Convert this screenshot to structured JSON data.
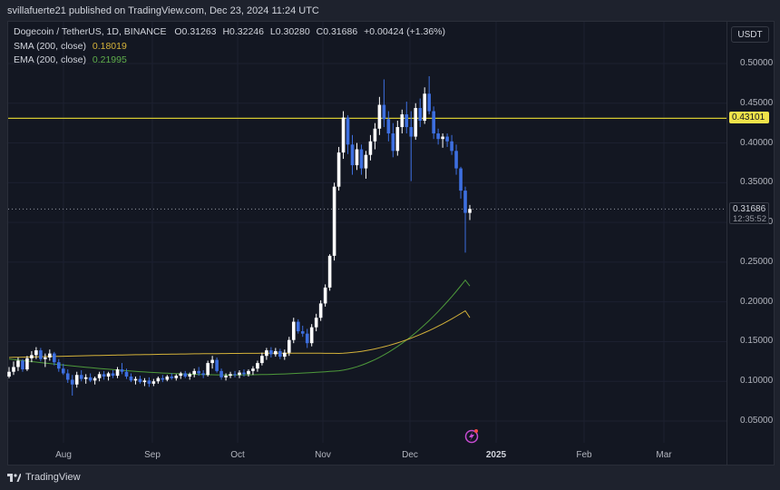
{
  "header": {
    "publisher": "svillafuerte21 published on TradingView.com, Dec 23, 2024 11:24 UTC"
  },
  "legend": {
    "symbol": "Dogecoin / TetherUS, 1D, BINANCE",
    "open": "O0.31263",
    "high": "H0.32246",
    "low": "L0.30280",
    "close": "C0.31686",
    "change": "+0.00424 (+1.36%)",
    "sma_label": "SMA (200, close)",
    "sma_value": "0.18019",
    "ema_label": "EMA (200, close)",
    "ema_value": "0.21995"
  },
  "toolbar": {
    "currency": "USDT"
  },
  "price_scale": [
    "0.50000",
    "0.45000",
    "0.40000",
    "0.35000",
    "0.30000",
    "0.25000",
    "0.20000",
    "0.15000",
    "0.10000",
    "0.05000"
  ],
  "level_badge": "0.43101",
  "price_badge": {
    "price": "0.31686",
    "countdown": "12:35:52"
  },
  "time_scale": [
    {
      "label": "Aug",
      "bold": false
    },
    {
      "label": "Sep",
      "bold": false
    },
    {
      "label": "Oct",
      "bold": false
    },
    {
      "label": "Nov",
      "bold": false
    },
    {
      "label": "Dec",
      "bold": false
    },
    {
      "label": "2025",
      "bold": true
    },
    {
      "label": "Feb",
      "bold": false
    },
    {
      "label": "Mar",
      "bold": false
    }
  ],
  "footer": {
    "logo_text": "TradingView"
  },
  "colors": {
    "up": "#ffffff",
    "down": "#3d6fe0",
    "sma": "#d4b23a",
    "ema": "#4e9a3b",
    "level": "#d4c830",
    "background": "#131722"
  },
  "chart_data": {
    "type": "candlestick",
    "ylim": [
      0.05,
      0.5
    ],
    "horizontal_level": 0.43101,
    "last_price": 0.31686,
    "x_ticks": [
      "Aug",
      "Sep",
      "Oct",
      "Nov",
      "Dec",
      "2025",
      "Feb",
      "Mar"
    ],
    "candles_ohlc": [
      [
        0.106,
        0.118,
        0.104,
        0.112
      ],
      [
        0.112,
        0.125,
        0.108,
        0.118
      ],
      [
        0.118,
        0.13,
        0.113,
        0.126
      ],
      [
        0.126,
        0.128,
        0.112,
        0.115
      ],
      [
        0.115,
        0.132,
        0.113,
        0.129
      ],
      [
        0.129,
        0.138,
        0.124,
        0.133
      ],
      [
        0.133,
        0.143,
        0.128,
        0.139
      ],
      [
        0.139,
        0.142,
        0.125,
        0.128
      ],
      [
        0.128,
        0.135,
        0.118,
        0.13
      ],
      [
        0.13,
        0.14,
        0.126,
        0.135
      ],
      [
        0.135,
        0.137,
        0.12,
        0.124
      ],
      [
        0.124,
        0.128,
        0.112,
        0.116
      ],
      [
        0.116,
        0.122,
        0.108,
        0.11
      ],
      [
        0.11,
        0.115,
        0.098,
        0.102
      ],
      [
        0.102,
        0.108,
        0.082,
        0.096
      ],
      [
        0.096,
        0.112,
        0.092,
        0.108
      ],
      [
        0.108,
        0.114,
        0.1,
        0.103
      ],
      [
        0.103,
        0.109,
        0.097,
        0.105
      ],
      [
        0.105,
        0.11,
        0.099,
        0.101
      ],
      [
        0.101,
        0.106,
        0.096,
        0.104
      ],
      [
        0.104,
        0.112,
        0.1,
        0.109
      ],
      [
        0.109,
        0.113,
        0.102,
        0.106
      ],
      [
        0.106,
        0.112,
        0.101,
        0.11
      ],
      [
        0.11,
        0.114,
        0.104,
        0.107
      ],
      [
        0.107,
        0.118,
        0.104,
        0.115
      ],
      [
        0.115,
        0.123,
        0.109,
        0.112
      ],
      [
        0.112,
        0.116,
        0.103,
        0.106
      ],
      [
        0.106,
        0.11,
        0.099,
        0.101
      ],
      [
        0.101,
        0.106,
        0.096,
        0.103
      ],
      [
        0.103,
        0.107,
        0.097,
        0.099
      ],
      [
        0.099,
        0.104,
        0.094,
        0.101
      ],
      [
        0.101,
        0.105,
        0.093,
        0.097
      ],
      [
        0.097,
        0.103,
        0.094,
        0.1
      ],
      [
        0.1,
        0.106,
        0.097,
        0.104
      ],
      [
        0.104,
        0.108,
        0.099,
        0.102
      ],
      [
        0.102,
        0.108,
        0.1,
        0.106
      ],
      [
        0.106,
        0.11,
        0.102,
        0.104
      ],
      [
        0.104,
        0.109,
        0.101,
        0.107
      ],
      [
        0.107,
        0.112,
        0.103,
        0.11
      ],
      [
        0.11,
        0.113,
        0.104,
        0.106
      ],
      [
        0.106,
        0.111,
        0.102,
        0.109
      ],
      [
        0.109,
        0.116,
        0.105,
        0.113
      ],
      [
        0.113,
        0.118,
        0.107,
        0.11
      ],
      [
        0.11,
        0.114,
        0.104,
        0.108
      ],
      [
        0.108,
        0.126,
        0.106,
        0.123
      ],
      [
        0.123,
        0.132,
        0.116,
        0.127
      ],
      [
        0.127,
        0.13,
        0.111,
        0.113
      ],
      [
        0.113,
        0.116,
        0.102,
        0.105
      ],
      [
        0.105,
        0.11,
        0.101,
        0.107
      ],
      [
        0.107,
        0.112,
        0.104,
        0.109
      ],
      [
        0.109,
        0.113,
        0.105,
        0.108
      ],
      [
        0.108,
        0.114,
        0.104,
        0.111
      ],
      [
        0.111,
        0.115,
        0.106,
        0.109
      ],
      [
        0.109,
        0.115,
        0.106,
        0.113
      ],
      [
        0.113,
        0.119,
        0.108,
        0.116
      ],
      [
        0.116,
        0.126,
        0.112,
        0.123
      ],
      [
        0.123,
        0.136,
        0.12,
        0.132
      ],
      [
        0.132,
        0.142,
        0.127,
        0.139
      ],
      [
        0.139,
        0.143,
        0.13,
        0.134
      ],
      [
        0.134,
        0.142,
        0.131,
        0.138
      ],
      [
        0.138,
        0.141,
        0.128,
        0.131
      ],
      [
        0.131,
        0.14,
        0.127,
        0.136
      ],
      [
        0.136,
        0.156,
        0.132,
        0.152
      ],
      [
        0.152,
        0.18,
        0.148,
        0.175
      ],
      [
        0.175,
        0.178,
        0.16,
        0.163
      ],
      [
        0.163,
        0.17,
        0.156,
        0.16
      ],
      [
        0.16,
        0.166,
        0.142,
        0.148
      ],
      [
        0.148,
        0.172,
        0.144,
        0.168
      ],
      [
        0.168,
        0.185,
        0.163,
        0.18
      ],
      [
        0.18,
        0.202,
        0.176,
        0.198
      ],
      [
        0.198,
        0.222,
        0.194,
        0.218
      ],
      [
        0.218,
        0.26,
        0.214,
        0.258
      ],
      [
        0.258,
        0.35,
        0.252,
        0.345
      ],
      [
        0.345,
        0.395,
        0.34,
        0.388
      ],
      [
        0.388,
        0.44,
        0.38,
        0.432
      ],
      [
        0.432,
        0.435,
        0.386,
        0.398
      ],
      [
        0.398,
        0.41,
        0.36,
        0.372
      ],
      [
        0.372,
        0.4,
        0.366,
        0.392
      ],
      [
        0.392,
        0.398,
        0.36,
        0.368
      ],
      [
        0.368,
        0.39,
        0.355,
        0.385
      ],
      [
        0.385,
        0.41,
        0.378,
        0.402
      ],
      [
        0.402,
        0.425,
        0.392,
        0.418
      ],
      [
        0.418,
        0.458,
        0.41,
        0.448
      ],
      [
        0.448,
        0.48,
        0.42,
        0.43
      ],
      [
        0.43,
        0.44,
        0.402,
        0.412
      ],
      [
        0.412,
        0.425,
        0.382,
        0.39
      ],
      [
        0.39,
        0.428,
        0.384,
        0.42
      ],
      [
        0.42,
        0.442,
        0.412,
        0.436
      ],
      [
        0.436,
        0.452,
        0.412,
        0.42
      ],
      [
        0.42,
        0.44,
        0.352,
        0.408
      ],
      [
        0.408,
        0.45,
        0.404,
        0.444
      ],
      [
        0.444,
        0.456,
        0.42,
        0.428
      ],
      [
        0.428,
        0.47,
        0.424,
        0.462
      ],
      [
        0.462,
        0.484,
        0.436,
        0.44
      ],
      [
        0.44,
        0.446,
        0.405,
        0.412
      ],
      [
        0.412,
        0.418,
        0.398,
        0.405
      ],
      [
        0.405,
        0.412,
        0.394,
        0.408
      ],
      [
        0.408,
        0.412,
        0.395,
        0.402
      ],
      [
        0.402,
        0.41,
        0.385,
        0.39
      ],
      [
        0.39,
        0.398,
        0.36,
        0.368
      ],
      [
        0.368,
        0.37,
        0.33,
        0.34
      ],
      [
        0.34,
        0.345,
        0.262,
        0.312
      ],
      [
        0.312,
        0.322,
        0.303,
        0.317
      ]
    ],
    "sma_200": {
      "label": "SMA (200, close)",
      "last": 0.18019
    },
    "ema_200": {
      "label": "EMA (200, close)",
      "last": 0.21995
    }
  }
}
